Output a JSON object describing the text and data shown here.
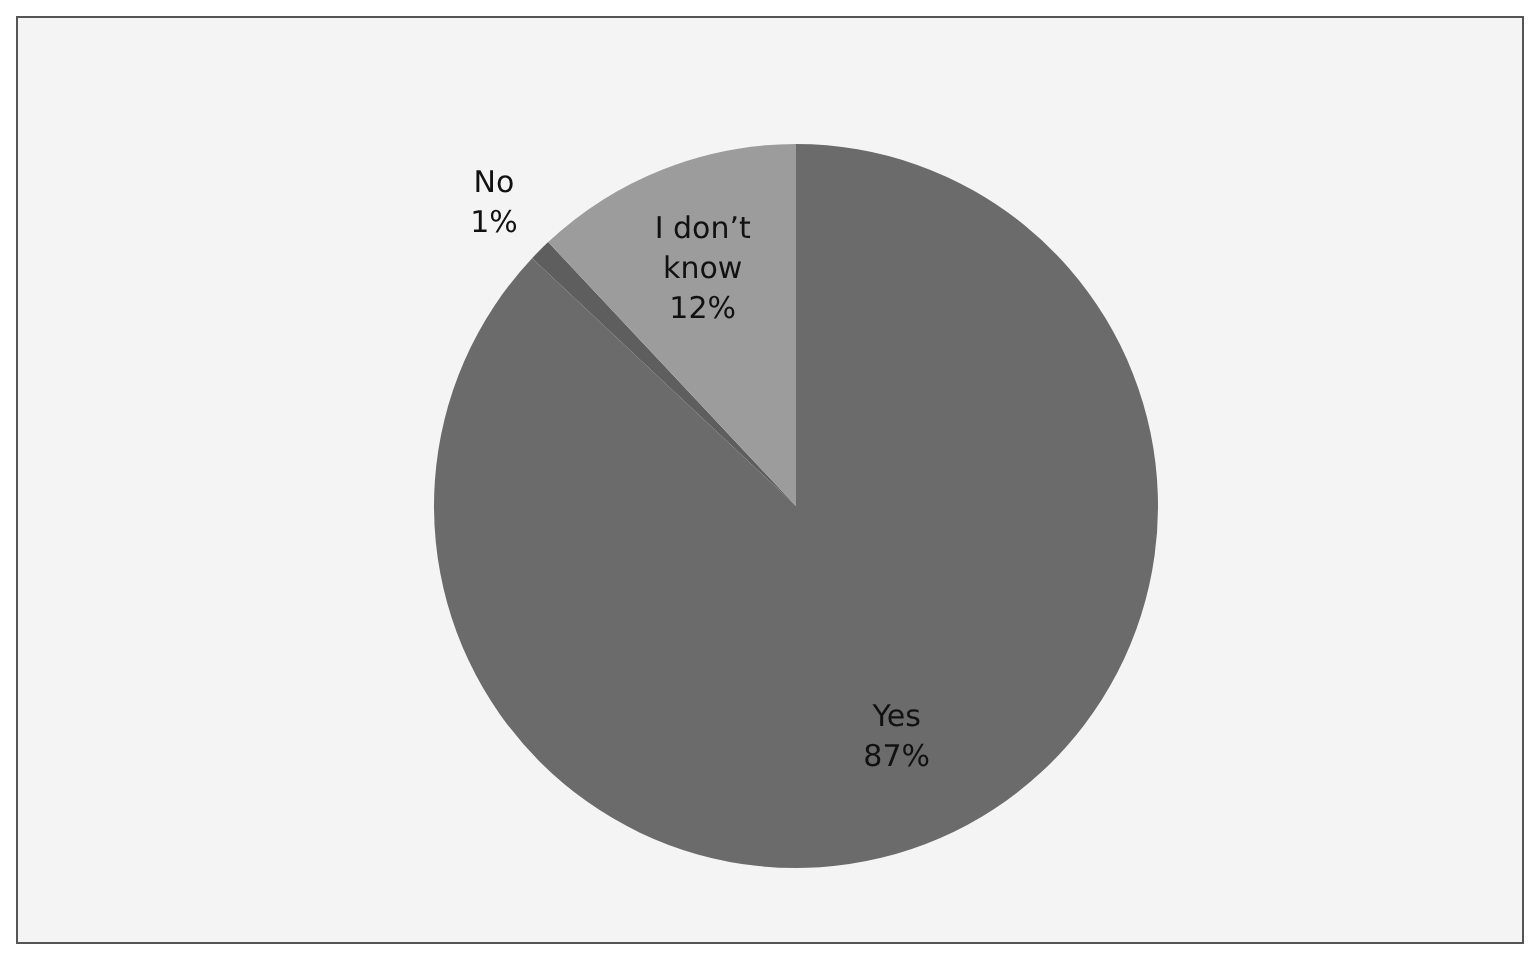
{
  "chart_data": {
    "type": "pie",
    "categories": [
      "Yes",
      "No",
      "I don’t know"
    ],
    "values": [
      87,
      1,
      12
    ],
    "value_labels": [
      "87%",
      "1%",
      "12%"
    ],
    "colors": [
      "#6b6b6b",
      "#5e5e5e",
      "#9c9c9c"
    ],
    "legend": false
  }
}
